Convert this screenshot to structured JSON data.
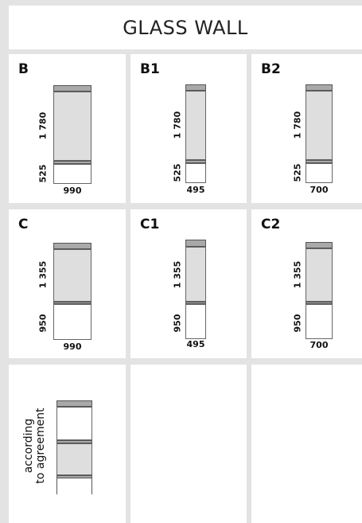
{
  "title": "GLASS WALL",
  "colors": {
    "frame_bar": "#a9a9a9",
    "glass": "#dedede",
    "background": "#e3e3e3"
  },
  "types": [
    {
      "code": "B",
      "upper_height": "1 780",
      "lower_height": "525",
      "width": "990"
    },
    {
      "code": "B1",
      "upper_height": "1 780",
      "lower_height": "525",
      "width": "495"
    },
    {
      "code": "B2",
      "upper_height": "1 780",
      "lower_height": "525",
      "width": "700"
    },
    {
      "code": "C",
      "upper_height": "1 355",
      "lower_height": "950",
      "width": "990"
    },
    {
      "code": "C1",
      "upper_height": "1 355",
      "lower_height": "950",
      "width": "495"
    },
    {
      "code": "C2",
      "upper_height": "1 355",
      "lower_height": "950",
      "width": "700"
    }
  ],
  "agreement_note": {
    "line1": "according",
    "line2": "to agreement"
  }
}
